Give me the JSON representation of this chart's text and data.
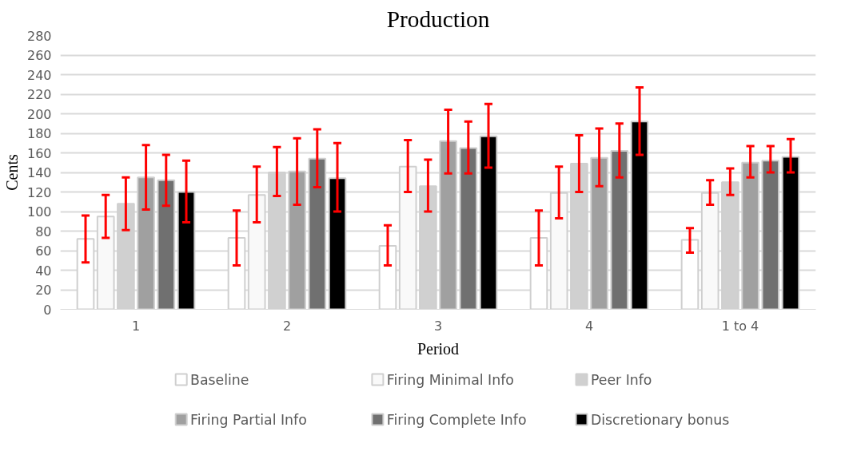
{
  "chart_data": {
    "type": "bar",
    "title": "Production",
    "xlabel": "Period",
    "ylabel": "Cents",
    "categories": [
      "1",
      "2",
      "3",
      "4",
      "1 to 4"
    ],
    "series": [
      {
        "name": "Baseline",
        "color": "#ffffff",
        "values": [
          72,
          73,
          65,
          73,
          71
        ],
        "errors": [
          [
            48,
            96
          ],
          [
            45,
            101
          ],
          [
            45,
            86
          ],
          [
            45,
            101
          ],
          [
            58,
            83
          ]
        ]
      },
      {
        "name": "Firing Minimal Info",
        "color": "#f9f9f9",
        "values": [
          95,
          117,
          146,
          119,
          119
        ],
        "errors": [
          [
            73,
            117
          ],
          [
            89,
            146
          ],
          [
            120,
            173
          ],
          [
            93,
            146
          ],
          [
            107,
            132
          ]
        ]
      },
      {
        "name": "Peer Info",
        "color": "#d0d0d0",
        "values": [
          108,
          140,
          126,
          149,
          130
        ],
        "errors": [
          [
            81,
            135
          ],
          [
            116,
            166
          ],
          [
            100,
            153
          ],
          [
            120,
            178
          ],
          [
            117,
            144
          ]
        ]
      },
      {
        "name": "Firing Partial Info",
        "color": "#a0a0a0",
        "values": [
          135,
          141,
          172,
          155,
          150
        ],
        "errors": [
          [
            102,
            168
          ],
          [
            107,
            175
          ],
          [
            139,
            204
          ],
          [
            126,
            185
          ],
          [
            135,
            167
          ]
        ]
      },
      {
        "name": "Firing Complete Info",
        "color": "#707070",
        "values": [
          132,
          154,
          165,
          162,
          152
        ],
        "errors": [
          [
            106,
            158
          ],
          [
            125,
            184
          ],
          [
            139,
            192
          ],
          [
            135,
            190
          ],
          [
            140,
            167
          ]
        ]
      },
      {
        "name": "Discretionary bonus",
        "color": "#000000",
        "values": [
          120,
          134,
          177,
          192,
          156
        ],
        "errors": [
          [
            89,
            152
          ],
          [
            100,
            170
          ],
          [
            145,
            210
          ],
          [
            158,
            227
          ],
          [
            140,
            174
          ]
        ]
      }
    ],
    "ylim": [
      0,
      280
    ],
    "yticks": [
      0,
      20,
      40,
      60,
      80,
      100,
      120,
      140,
      160,
      180,
      200,
      220,
      240,
      260,
      280
    ],
    "grid": "y",
    "legend": "bottom"
  }
}
